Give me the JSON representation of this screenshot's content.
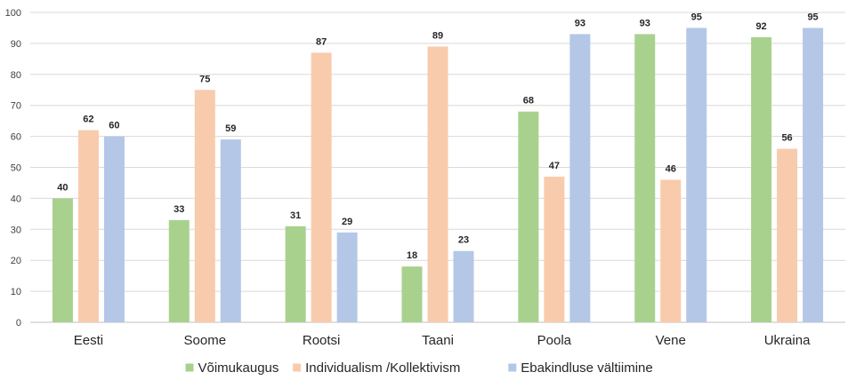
{
  "chart_data": {
    "type": "bar",
    "categories": [
      "Eesti",
      "Soome",
      "Rootsi",
      "Taani",
      "Poola",
      "Vene",
      "Ukraina"
    ],
    "series": [
      {
        "name": "Võimukaugus",
        "color": "#a9d18e",
        "values": [
          40,
          33,
          31,
          18,
          68,
          93,
          92
        ]
      },
      {
        "name": "Individualism /Kollektivism",
        "color": "#f8cbad",
        "values": [
          62,
          75,
          87,
          89,
          47,
          46,
          56
        ]
      },
      {
        "name": "Ebakindluse vältiimine",
        "color": "#b4c7e7",
        "values": [
          60,
          59,
          29,
          23,
          93,
          95,
          95
        ]
      }
    ],
    "ylim": [
      0,
      100
    ],
    "yticks": [
      0,
      10,
      20,
      30,
      40,
      50,
      60,
      70,
      80,
      90,
      100
    ],
    "grid": true,
    "legend_position": "bottom",
    "data_labels": true
  }
}
